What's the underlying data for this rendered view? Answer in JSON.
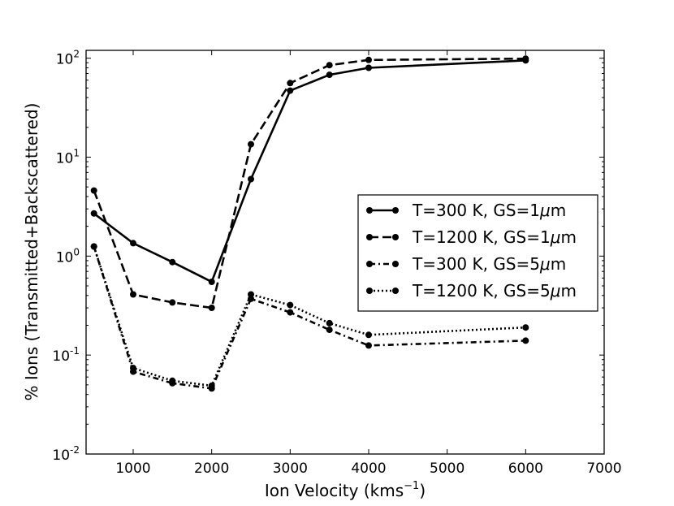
{
  "chart_data": {
    "type": "line",
    "title": "",
    "xlabel_main": "Ion Velocity (kms",
    "xlabel_sup": "−1",
    "xlabel_close": ")",
    "ylabel": "% Ions (Transmitted+Backscattered)",
    "xlim": [
      400,
      7000
    ],
    "ylim": [
      0.01,
      120
    ],
    "yscale": "log",
    "grid": false,
    "legend_position": "center-right",
    "x_ticks": [
      {
        "value": 1000,
        "label": "1000"
      },
      {
        "value": 2000,
        "label": "2000"
      },
      {
        "value": 3000,
        "label": "3000"
      },
      {
        "value": 4000,
        "label": "4000"
      },
      {
        "value": 5000,
        "label": "5000"
      },
      {
        "value": 6000,
        "label": "6000"
      },
      {
        "value": 7000,
        "label": "7000"
      }
    ],
    "y_ticks": [
      {
        "value": 0.01,
        "base": "10",
        "exp": "-2"
      },
      {
        "value": 0.1,
        "base": "10",
        "exp": "-1"
      },
      {
        "value": 1,
        "base": "10",
        "exp": "0"
      },
      {
        "value": 10,
        "base": "10",
        "exp": "1"
      },
      {
        "value": 100,
        "base": "10",
        "exp": "2"
      }
    ],
    "series": [
      {
        "name": "T=300 K, GS=1μm",
        "label_pre": "T=300 K, GS=1",
        "label_mu": "μ",
        "label_post": "m",
        "style": "solid",
        "x": [
          500,
          1000,
          1500,
          2000,
          2500,
          3000,
          3500,
          4000,
          6000
        ],
        "y": [
          2.7,
          1.35,
          0.87,
          0.55,
          6.0,
          47,
          68,
          80,
          95
        ]
      },
      {
        "name": "T=1200 K, GS=1μm",
        "label_pre": "T=1200 K, GS=1",
        "label_mu": "μ",
        "label_post": "m",
        "style": "dashed",
        "x": [
          500,
          1000,
          1500,
          2000,
          2500,
          3000,
          3500,
          4000,
          6000
        ],
        "y": [
          4.6,
          0.41,
          0.34,
          0.3,
          13.5,
          56,
          85,
          96,
          99
        ]
      },
      {
        "name": "T=300 K, GS=5μm",
        "label_pre": "T=300 K, GS=5",
        "label_mu": "μ",
        "label_post": "m",
        "style": "dashdot",
        "x": [
          500,
          1000,
          1500,
          2000,
          2500,
          3000,
          3500,
          4000,
          6000
        ],
        "y": [
          1.25,
          0.068,
          0.052,
          0.046,
          0.37,
          0.27,
          0.18,
          0.125,
          0.14
        ]
      },
      {
        "name": "T=1200 K, GS=5μm",
        "label_pre": "T=1200 K, GS=5",
        "label_mu": "μ",
        "label_post": "m",
        "style": "dotted",
        "x": [
          500,
          1000,
          1500,
          2000,
          2500,
          3000,
          3500,
          4000,
          6000
        ],
        "y": [
          1.25,
          0.074,
          0.055,
          0.049,
          0.41,
          0.32,
          0.21,
          0.16,
          0.19
        ]
      }
    ]
  }
}
